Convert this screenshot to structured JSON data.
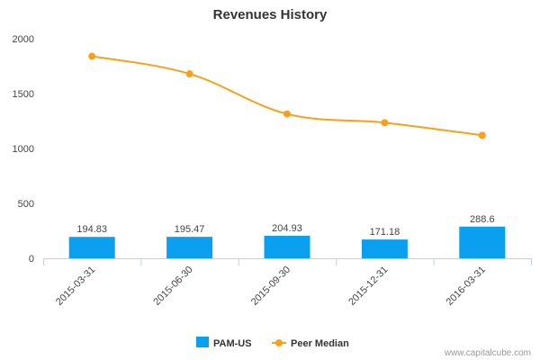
{
  "chart_data": {
    "type": "bar",
    "title": "Revenues History",
    "categories": [
      "2015-03-31",
      "2015-06-30",
      "2015-09-30",
      "2015-12-31",
      "2016-03-31"
    ],
    "series": [
      {
        "name": "PAM-US",
        "type": "bar",
        "color": "#0b9ff0",
        "values": [
          194.83,
          195.47,
          204.93,
          171.18,
          288.6
        ],
        "labels": [
          "194.83",
          "195.47",
          "204.93",
          "171.18",
          "288.6"
        ]
      },
      {
        "name": "Peer Median",
        "type": "line",
        "color": "#f7a11a",
        "values": [
          1840,
          1680,
          1315,
          1235,
          1120
        ]
      }
    ],
    "ylim": [
      0,
      2000
    ],
    "yticks": [
      0,
      500,
      1000,
      1500,
      2000
    ],
    "grid": false,
    "legend_position": "bottom-center"
  },
  "credit": "www.capitalcube.com"
}
